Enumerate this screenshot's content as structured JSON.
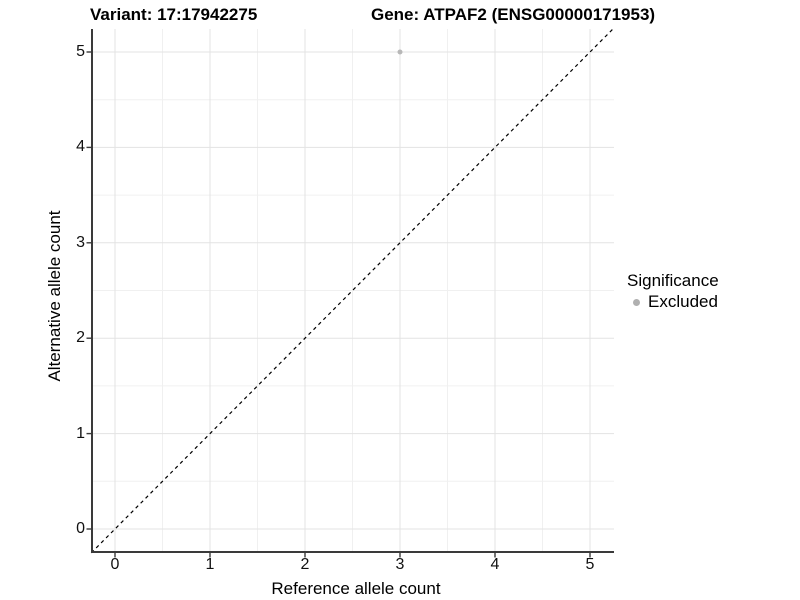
{
  "titles": {
    "variant": "Variant: 17:17942275",
    "gene": "Gene: ATPAF2 (ENSG00000171953)"
  },
  "chart_data": {
    "type": "scatter",
    "xlabel": "Reference allele count",
    "ylabel": "Alternative allele count",
    "xlim": [
      -0.25,
      5.25
    ],
    "ylim": [
      -0.25,
      5.25
    ],
    "x_ticks": [
      0,
      1,
      2,
      3,
      4,
      5
    ],
    "y_ticks": [
      0,
      1,
      2,
      3,
      4,
      5
    ],
    "grid": {
      "major": true,
      "minor": true
    },
    "reference_line": {
      "type": "identity",
      "style": "dashed",
      "from": [
        -0.25,
        -0.25
      ],
      "to": [
        5.25,
        5.25
      ]
    },
    "series": [
      {
        "name": "Excluded",
        "color": "#b8b8b8",
        "marker": "circle",
        "points": [
          {
            "x": 3,
            "y": 5
          }
        ]
      }
    ],
    "legend": {
      "title": "Significance",
      "position": "right",
      "entries": [
        {
          "label": "Excluded",
          "color": "#b0b0b0",
          "marker": "circle"
        }
      ]
    }
  },
  "colors": {
    "background": "#ffffff",
    "grid_major": "#e3e3e3",
    "grid_minor": "#f0f0f0",
    "axis": "#3a3a3a",
    "reference_line": "#000000",
    "text": "#000000"
  }
}
